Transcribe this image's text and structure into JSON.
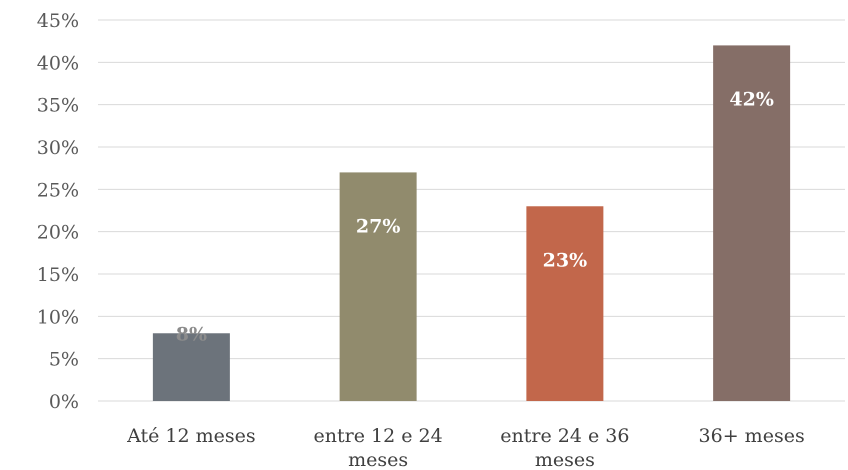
{
  "chart_data": {
    "type": "bar",
    "title": "",
    "xlabel": "",
    "ylabel": "",
    "categories": [
      [
        "Até 12 meses"
      ],
      [
        "entre 12 e 24",
        "meses"
      ],
      [
        "entre 24 e 36",
        "meses"
      ],
      [
        "36+ meses"
      ]
    ],
    "values": [
      8,
      27,
      23,
      42
    ],
    "data_labels": [
      "8%",
      "27%",
      "23%",
      "42%"
    ],
    "colors": [
      "#6c737b",
      "#918b6d",
      "#c2674b",
      "#856e67"
    ],
    "label_colors": [
      "#8c8c8c",
      "#ffffff",
      "#ffffff",
      "#ffffff"
    ],
    "label_position": [
      "outside",
      "inside",
      "inside",
      "inside"
    ],
    "y_ticks": [
      0,
      5,
      10,
      15,
      20,
      25,
      30,
      35,
      40,
      45
    ],
    "y_tick_labels": [
      "0%",
      "5%",
      "10%",
      "15%",
      "20%",
      "25%",
      "30%",
      "35%",
      "40%",
      "45%"
    ],
    "ylim": [
      0,
      45
    ],
    "grid": true,
    "legend": "none"
  }
}
